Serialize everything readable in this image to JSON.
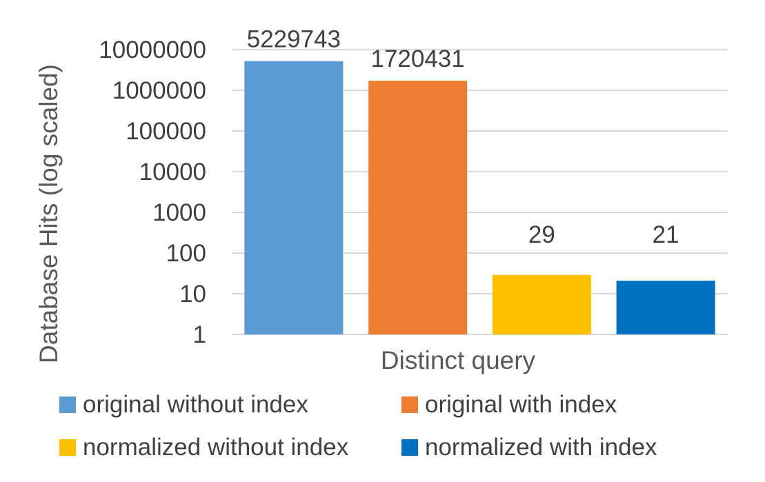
{
  "chart_data": {
    "type": "bar",
    "scale": "log10",
    "categories": [
      "Distinct query"
    ],
    "xlabel": "Distinct query",
    "ylabel": "Database Hits (log scaled)",
    "ylim": [
      1,
      10000000
    ],
    "yticks": [
      "1",
      "10",
      "100",
      "1000",
      "10000",
      "100000",
      "1000000",
      "10000000"
    ],
    "grid": true,
    "legend_position": "bottom",
    "series": [
      {
        "name": "original without index",
        "values": [
          5229743
        ],
        "label": "5229743",
        "color": "#5B9BD5"
      },
      {
        "name": "original with index",
        "values": [
          1720431
        ],
        "label": "1720431",
        "color": "#ED7D31"
      },
      {
        "name": "normalized without index",
        "values": [
          29
        ],
        "label": "29",
        "color": "#FFC000"
      },
      {
        "name": "normalized with index",
        "values": [
          21
        ],
        "label": "21",
        "color": "#0070C0"
      }
    ]
  }
}
